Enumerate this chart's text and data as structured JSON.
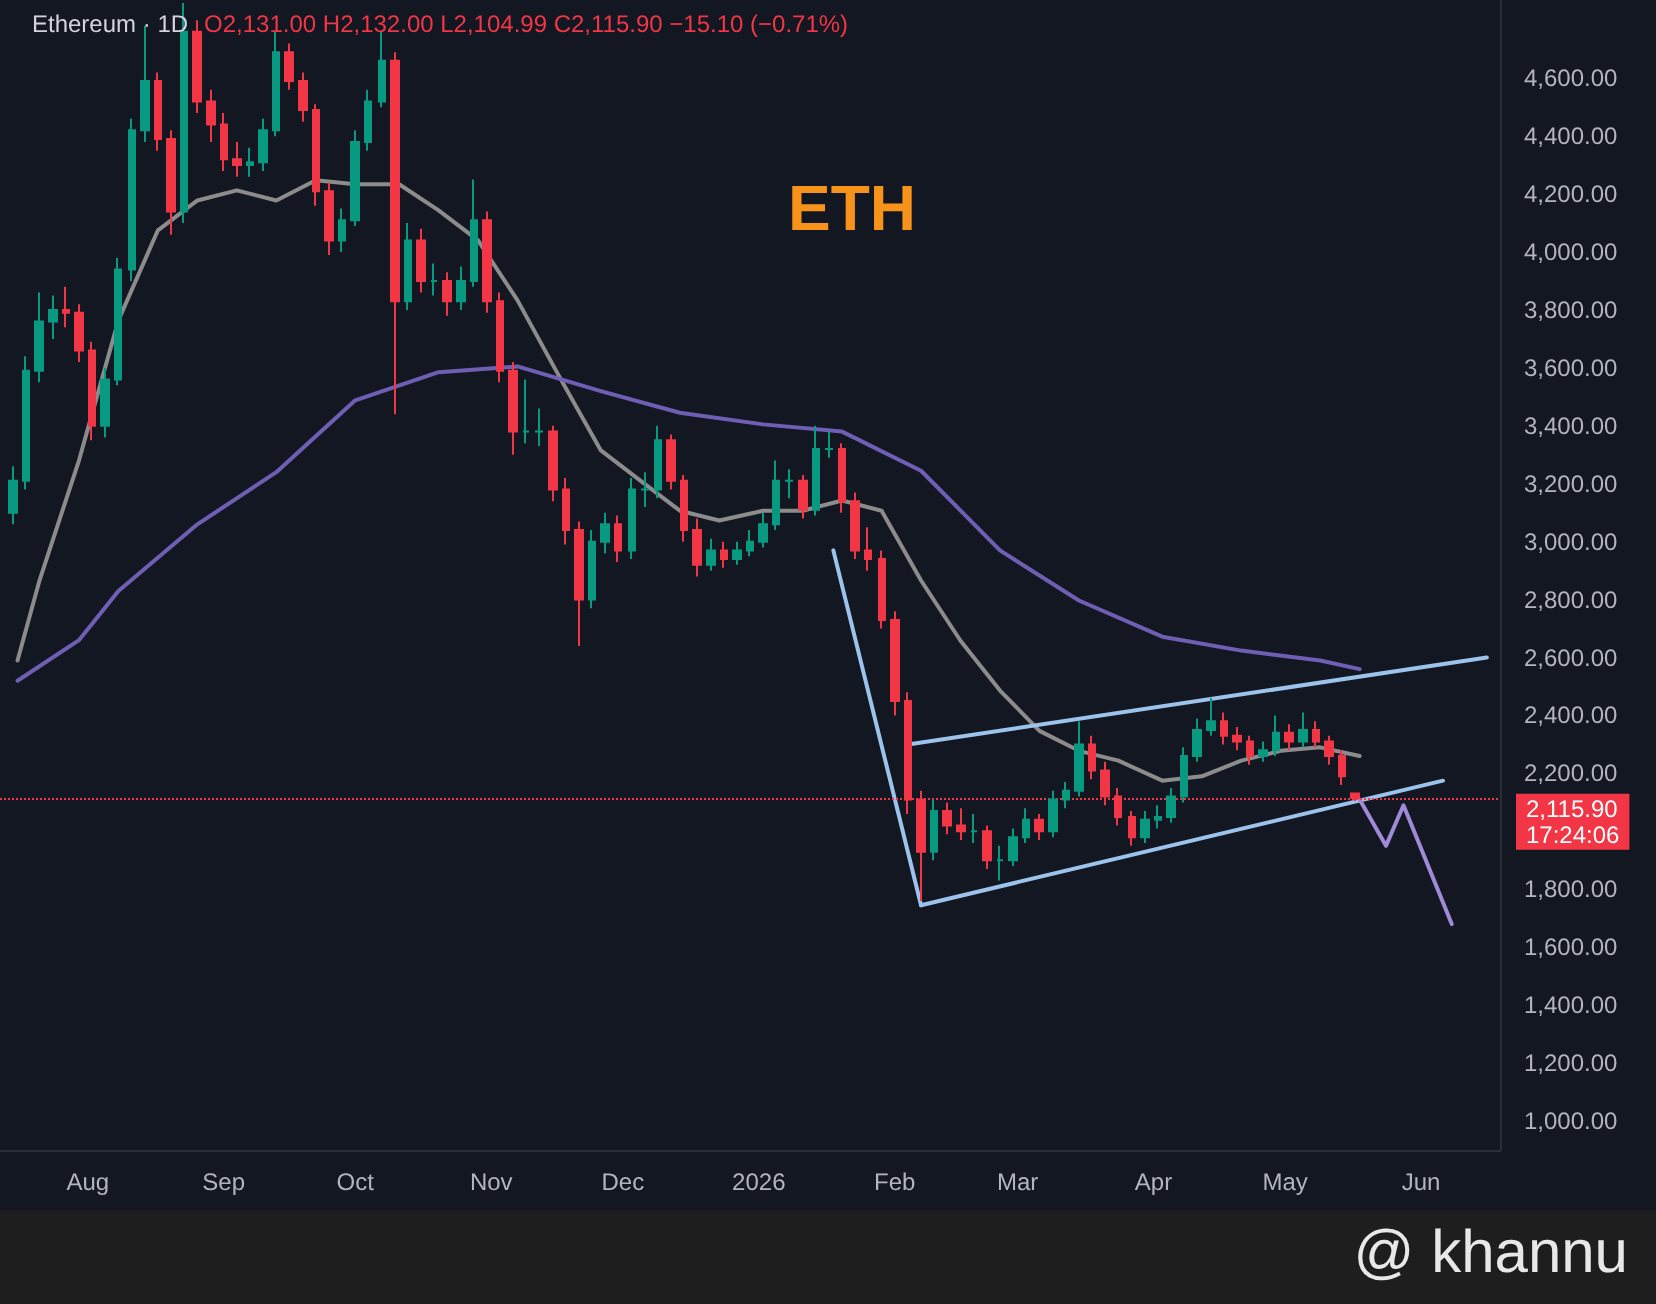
{
  "chart_data": {
    "type": "candlestick",
    "title": "Ethereum · 1D",
    "annotations": [
      "O2,131.00 H2,132.00 L2,104.99 C2,115.90 −15.10 (−0.71%)",
      "ETH",
      "@ khannu"
    ],
    "xlim": [
      "2025-07-12",
      "2026-06-19"
    ],
    "xticks": [
      {
        "value": "2025-08-01",
        "label": "Aug"
      },
      {
        "value": "2025-09-01",
        "label": "Sep"
      },
      {
        "value": "2025-10-01",
        "label": "Oct"
      },
      {
        "value": "2025-11-01",
        "label": "Nov"
      },
      {
        "value": "2025-12-01",
        "label": "Dec"
      },
      {
        "value": "2026-01-01",
        "label": "2026"
      },
      {
        "value": "2026-02-01",
        "label": "Feb"
      },
      {
        "value": "2026-03-01",
        "label": "Mar"
      },
      {
        "value": "2026-04-01",
        "label": "Apr"
      },
      {
        "value": "2026-05-01",
        "label": "May"
      },
      {
        "value": "2026-06-01",
        "label": "Jun"
      }
    ],
    "ylim": [
      900,
      4870
    ],
    "yticks": [
      {
        "value": 1000,
        "label": "1,000.00"
      },
      {
        "value": 1200,
        "label": "1,200.00"
      },
      {
        "value": 1400,
        "label": "1,400.00"
      },
      {
        "value": 1600,
        "label": "1,600.00"
      },
      {
        "value": 1800,
        "label": "1,800.00"
      },
      {
        "value": 2200,
        "label": "2,200.00"
      },
      {
        "value": 2400,
        "label": "2,400.00"
      },
      {
        "value": 2600,
        "label": "2,600.00"
      },
      {
        "value": 2800,
        "label": "2,800.00"
      },
      {
        "value": 3000,
        "label": "3,000.00"
      },
      {
        "value": 3200,
        "label": "3,200.00"
      },
      {
        "value": 3400,
        "label": "3,400.00"
      },
      {
        "value": 3600,
        "label": "3,600.00"
      },
      {
        "value": 3800,
        "label": "3,800.00"
      },
      {
        "value": 4000,
        "label": "4,000.00"
      },
      {
        "value": 4200,
        "label": "4,200.00"
      },
      {
        "value": 4400,
        "label": "4,400.00"
      },
      {
        "value": 4600,
        "label": "4,600.00"
      }
    ],
    "ref_lines": [
      {
        "axis": "y",
        "value": 2115.9,
        "label": "2,115.90\n17:24:06",
        "color": "#f23645",
        "line_style": "dotted"
      }
    ],
    "series": [
      {
        "type": "candlestick",
        "x": [
          "2025-07-15",
          "2025-07-18",
          "2025-07-21",
          "2025-07-24",
          "2025-07-27",
          "2025-07-30",
          "2025-08-02",
          "2025-08-05",
          "2025-08-08",
          "2025-08-11",
          "2025-08-14",
          "2025-08-17",
          "2025-08-20",
          "2025-08-23",
          "2025-08-26",
          "2025-08-29",
          "2025-09-01",
          "2025-09-04",
          "2025-09-07",
          "2025-09-10",
          "2025-09-13",
          "2025-09-16",
          "2025-09-19",
          "2025-09-22",
          "2025-09-25",
          "2025-09-28",
          "2025-10-01",
          "2025-10-04",
          "2025-10-07",
          "2025-10-10",
          "2025-10-13",
          "2025-10-16",
          "2025-10-19",
          "2025-10-22",
          "2025-10-25",
          "2025-10-28",
          "2025-10-31",
          "2025-11-03",
          "2025-11-06",
          "2025-11-09",
          "2025-11-12",
          "2025-11-15",
          "2025-11-18",
          "2025-11-21",
          "2025-11-24",
          "2025-11-27",
          "2025-11-30",
          "2025-12-03",
          "2025-12-06",
          "2025-12-09",
          "2025-12-12",
          "2025-12-15",
          "2025-12-18",
          "2025-12-21",
          "2025-12-24",
          "2025-12-27",
          "2025-12-30",
          "2026-01-02",
          "2026-01-05",
          "2026-01-08",
          "2026-01-11",
          "2026-01-14",
          "2026-01-17",
          "2026-01-20",
          "2026-01-23",
          "2026-01-26",
          "2026-01-29",
          "2026-02-01",
          "2026-02-04",
          "2026-02-07",
          "2026-02-10",
          "2026-02-13",
          "2026-02-16",
          "2026-02-19",
          "2026-02-22",
          "2026-02-25",
          "2026-02-28",
          "2026-03-03",
          "2026-03-06",
          "2026-03-09",
          "2026-03-12",
          "2026-03-15",
          "2026-03-18",
          "2026-03-21",
          "2026-03-24",
          "2026-03-27",
          "2026-03-30",
          "2026-04-02",
          "2026-04-05",
          "2026-04-08",
          "2026-04-11",
          "2026-04-14",
          "2026-04-17",
          "2026-04-20",
          "2026-04-23",
          "2026-04-26",
          "2026-04-29",
          "2026-05-02",
          "2026-05-05",
          "2026-05-08",
          "2026-05-11",
          "2026-05-14",
          "2026-05-17"
        ],
        "ohlc": [
          [
            3100,
            3260,
            3060,
            3210
          ],
          [
            3210,
            3640,
            3180,
            3590
          ],
          [
            3590,
            3860,
            3550,
            3760
          ],
          [
            3760,
            3850,
            3700,
            3800
          ],
          [
            3800,
            3880,
            3740,
            3790
          ],
          [
            3790,
            3820,
            3620,
            3660
          ],
          [
            3660,
            3690,
            3350,
            3400
          ],
          [
            3400,
            3600,
            3360,
            3560
          ],
          [
            3560,
            3980,
            3540,
            3940
          ],
          [
            3940,
            4460,
            3900,
            4420
          ],
          [
            4420,
            4780,
            4380,
            4590
          ],
          [
            4590,
            4620,
            4350,
            4390
          ],
          [
            4390,
            4420,
            4060,
            4140
          ],
          [
            4140,
            4860,
            4100,
            4760
          ],
          [
            4760,
            4800,
            4480,
            4520
          ],
          [
            4520,
            4560,
            4380,
            4440
          ],
          [
            4440,
            4480,
            4280,
            4320
          ],
          [
            4320,
            4380,
            4260,
            4300
          ],
          [
            4300,
            4360,
            4260,
            4310
          ],
          [
            4310,
            4460,
            4280,
            4420
          ],
          [
            4420,
            4760,
            4400,
            4690
          ],
          [
            4690,
            4720,
            4560,
            4590
          ],
          [
            4590,
            4620,
            4450,
            4490
          ],
          [
            4490,
            4510,
            4160,
            4210
          ],
          [
            4210,
            4240,
            3990,
            4040
          ],
          [
            4040,
            4150,
            4000,
            4110
          ],
          [
            4110,
            4420,
            4090,
            4380
          ],
          [
            4380,
            4560,
            4350,
            4520
          ],
          [
            4520,
            4760,
            4500,
            4660
          ],
          [
            4660,
            4690,
            3440,
            3830
          ],
          [
            3830,
            4100,
            3800,
            4040
          ],
          [
            4040,
            4080,
            3860,
            3900
          ],
          [
            3900,
            3960,
            3850,
            3900
          ],
          [
            3900,
            3930,
            3780,
            3830
          ],
          [
            3830,
            3950,
            3800,
            3900
          ],
          [
            3900,
            4250,
            3880,
            4110
          ],
          [
            4110,
            4140,
            3790,
            3830
          ],
          [
            3830,
            3860,
            3550,
            3590
          ],
          [
            3590,
            3620,
            3300,
            3380
          ],
          [
            3380,
            3560,
            3340,
            3380
          ],
          [
            3380,
            3460,
            3330,
            3380
          ],
          [
            3380,
            3400,
            3140,
            3180
          ],
          [
            3180,
            3220,
            2990,
            3040
          ],
          [
            3040,
            3070,
            2640,
            2800
          ],
          [
            2800,
            3040,
            2770,
            3000
          ],
          [
            3000,
            3100,
            2960,
            3060
          ],
          [
            3060,
            3090,
            2930,
            2970
          ],
          [
            2970,
            3220,
            2940,
            3180
          ],
          [
            3180,
            3240,
            3120,
            3180
          ],
          [
            3180,
            3400,
            3150,
            3350
          ],
          [
            3350,
            3370,
            3180,
            3210
          ],
          [
            3210,
            3230,
            3000,
            3040
          ],
          [
            3040,
            3080,
            2880,
            2920
          ],
          [
            2920,
            3010,
            2900,
            2970
          ],
          [
            2970,
            3000,
            2910,
            2940
          ],
          [
            2940,
            3000,
            2920,
            2970
          ],
          [
            2970,
            3040,
            2950,
            3000
          ],
          [
            3000,
            3100,
            2980,
            3060
          ],
          [
            3060,
            3280,
            3040,
            3210
          ],
          [
            3210,
            3250,
            3150,
            3210
          ],
          [
            3210,
            3230,
            3080,
            3110
          ],
          [
            3110,
            3400,
            3090,
            3320
          ],
          [
            3320,
            3380,
            3290,
            3320
          ],
          [
            3320,
            3340,
            3100,
            3140
          ],
          [
            3140,
            3170,
            2940,
            2970
          ],
          [
            2970,
            3050,
            2900,
            2940
          ],
          [
            2940,
            2970,
            2700,
            2730
          ],
          [
            2730,
            2760,
            2400,
            2450
          ],
          [
            2450,
            2480,
            2060,
            2110
          ],
          [
            2110,
            2140,
            1760,
            1930
          ],
          [
            1930,
            2110,
            1900,
            2070
          ],
          [
            2070,
            2100,
            1990,
            2020
          ],
          [
            2020,
            2080,
            1970,
            2000
          ],
          [
            2000,
            2060,
            1960,
            2000
          ],
          [
            2000,
            2020,
            1870,
            1900
          ],
          [
            1900,
            1950,
            1830,
            1900
          ],
          [
            1900,
            2010,
            1880,
            1980
          ],
          [
            1980,
            2080,
            1960,
            2040
          ],
          [
            2040,
            2060,
            1970,
            2000
          ],
          [
            2000,
            2140,
            1980,
            2110
          ],
          [
            2110,
            2170,
            2080,
            2140
          ],
          [
            2140,
            2380,
            2120,
            2300
          ],
          [
            2300,
            2330,
            2180,
            2210
          ],
          [
            2210,
            2240,
            2090,
            2120
          ],
          [
            2120,
            2150,
            2020,
            2050
          ],
          [
            2050,
            2070,
            1950,
            1980
          ],
          [
            1980,
            2070,
            1960,
            2040
          ],
          [
            2040,
            2090,
            2010,
            2050
          ],
          [
            2050,
            2150,
            2030,
            2120
          ],
          [
            2120,
            2290,
            2100,
            2260
          ],
          [
            2260,
            2390,
            2240,
            2350
          ],
          [
            2350,
            2460,
            2330,
            2380
          ],
          [
            2380,
            2410,
            2300,
            2330
          ],
          [
            2330,
            2360,
            2280,
            2310
          ],
          [
            2310,
            2330,
            2230,
            2260
          ],
          [
            2260,
            2310,
            2240,
            2280
          ],
          [
            2280,
            2400,
            2260,
            2340
          ],
          [
            2340,
            2370,
            2280,
            2310
          ],
          [
            2310,
            2410,
            2290,
            2350
          ],
          [
            2350,
            2380,
            2290,
            2310
          ],
          [
            2310,
            2330,
            2230,
            2260
          ],
          [
            2260,
            2280,
            2160,
            2190
          ],
          [
            2131,
            2132,
            2104.99,
            2115.9
          ]
        ]
      },
      {
        "type": "line",
        "color": "#8c8c8c",
        "x": [
          "2025-07-16",
          "2025-07-21",
          "2025-07-30",
          "2025-08-08",
          "2025-08-17",
          "2025-08-26",
          "2025-09-04",
          "2025-09-13",
          "2025-09-22",
          "2025-10-01",
          "2025-10-11",
          "2025-10-20",
          "2025-10-29",
          "2025-11-07",
          "2025-11-17",
          "2025-11-26",
          "2025-12-05",
          "2025-12-14",
          "2025-12-23",
          "2026-01-02",
          "2026-01-11",
          "2026-01-20",
          "2026-01-29",
          "2026-02-07",
          "2026-02-16",
          "2026-02-25",
          "2026-03-06",
          "2026-03-15",
          "2026-03-24",
          "2026-04-03",
          "2026-04-12",
          "2026-04-21",
          "2026-04-30",
          "2026-05-09",
          "2026-05-18"
        ],
        "values": [
          2590,
          2866,
          3280,
          3764,
          4075,
          4178,
          4213,
          4178,
          4248,
          4234,
          4234,
          4144,
          4040,
          3833,
          3557,
          3315,
          3211,
          3107,
          3073,
          3107,
          3107,
          3142,
          3107,
          2866,
          2658,
          2486,
          2347,
          2278,
          2244,
          2175,
          2190,
          2244,
          2278,
          2290,
          2260
        ]
      },
      {
        "type": "line",
        "color": "#6e5fb5",
        "x": [
          "2025-07-16",
          "2025-07-30",
          "2025-08-08",
          "2025-08-26",
          "2025-09-13",
          "2025-10-01",
          "2025-10-20",
          "2025-11-07",
          "2025-11-26",
          "2025-12-14",
          "2026-01-02",
          "2026-01-20",
          "2026-02-07",
          "2026-02-25",
          "2026-03-15",
          "2026-04-03",
          "2026-04-21",
          "2026-05-09",
          "2026-05-18"
        ],
        "values": [
          2520,
          2660,
          2830,
          3060,
          3240,
          3488,
          3585,
          3605,
          3520,
          3445,
          3405,
          3380,
          3245,
          2970,
          2797,
          2672,
          2624,
          2590,
          2560
        ]
      },
      {
        "type": "line",
        "color": "#9cc3ec",
        "x": [
          "2026-01-18",
          "2026-02-07"
        ],
        "values": [
          2970,
          1745
        ]
      },
      {
        "type": "line",
        "color": "#9cc3ec",
        "x": [
          "2026-02-04",
          "2026-06-16"
        ],
        "values": [
          2300,
          2600
        ]
      },
      {
        "type": "line",
        "color": "#9cc3ec",
        "x": [
          "2026-02-07",
          "2026-06-06"
        ],
        "values": [
          1745,
          2175
        ]
      },
      {
        "type": "line",
        "color": "#a08ad8",
        "x": [
          "2026-05-18",
          "2026-05-24",
          "2026-05-28",
          "2026-06-08"
        ],
        "values": [
          2110,
          1950,
          2090,
          1680
        ]
      }
    ]
  }
}
